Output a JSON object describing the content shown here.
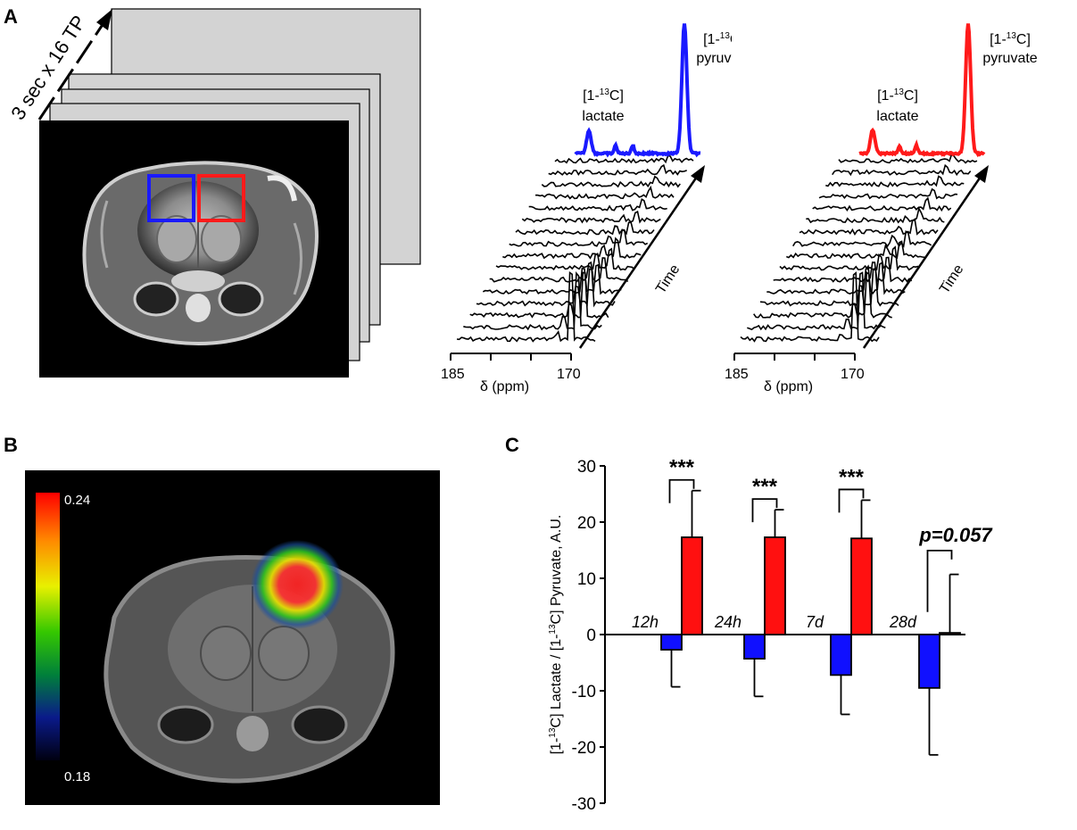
{
  "panels": {
    "a": {
      "letter": "A",
      "acquisition_label": "3 sec x 16 TP",
      "spectra": [
        {
          "color": "#1a1aff",
          "lactate": {
            "prefix": "[1-",
            "sup": "13",
            "suffix": "C]",
            "name": "lactate"
          },
          "pyruvate": {
            "prefix": "[1-",
            "sup": "13",
            "suffix": "C]",
            "name": "pyruvate"
          },
          "time_label": "Time",
          "axis_ticks": [
            "185",
            "170"
          ],
          "axis_label": "δ (ppm)"
        },
        {
          "color": "#ff1a1a",
          "lactate": {
            "prefix": "[1-",
            "sup": "13",
            "suffix": "C]",
            "name": "lactate"
          },
          "pyruvate": {
            "prefix": "[1-",
            "sup": "13",
            "suffix": "C]",
            "name": "pyruvate"
          },
          "time_label": "Time",
          "axis_ticks": [
            "185",
            "170"
          ],
          "axis_label": "δ (ppm)"
        }
      ]
    },
    "b": {
      "letter": "B",
      "colorbar_max": "0.24",
      "colorbar_min": "0.18"
    },
    "c": {
      "letter": "C"
    }
  },
  "chart_data": {
    "type": "bar",
    "categories": [
      "12h",
      "24h",
      "7d",
      "28d"
    ],
    "series": [
      {
        "color": "#1010ff",
        "values": [
          -2.7,
          -4.3,
          -7.2,
          -9.5
        ],
        "errors": [
          6.6,
          6.7,
          7.0,
          11.9
        ]
      },
      {
        "color": "#ff1010",
        "values": [
          17.3,
          17.3,
          17.1,
          0.3
        ],
        "errors": [
          8.3,
          4.9,
          6.8,
          10.4
        ]
      }
    ],
    "ylabel": {
      "prefix": "[1-",
      "sup1": "13",
      "mid": "C] Lactate / [1-",
      "sup2": "13",
      "suffix": "C] Pyruvate, A.U."
    },
    "ylim": [
      -30,
      30
    ],
    "yticks": [
      "-30",
      "-20",
      "-10",
      "0",
      "10",
      "20",
      "30"
    ],
    "significance": [
      "***",
      "***",
      "***",
      "p=0.057"
    ]
  }
}
